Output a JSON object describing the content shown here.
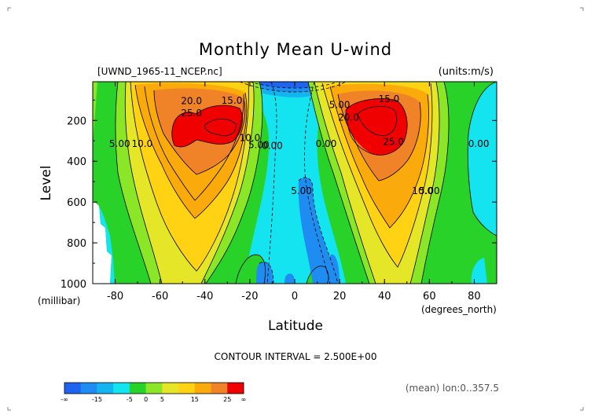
{
  "chart_data": {
    "type": "heatmap",
    "title": "Monthly Mean U-wind",
    "file_label": "[UWND_1965-11_NCEP.nc]",
    "units_label": "(units:m/s)",
    "xlabel": "Latitude",
    "x_units": "(degrees_north)",
    "ylabel": "Level",
    "y_units": "(millibar)",
    "xlim": [
      -90,
      90
    ],
    "ylim": [
      1000,
      10
    ],
    "x_ticks": [
      -80,
      -60,
      -40,
      -20,
      0,
      20,
      40,
      60,
      80
    ],
    "y_ticks": [
      200,
      400,
      600,
      800,
      1000
    ],
    "contour_interval": "CONTOUR INTERVAL = 2.500E+00",
    "averaging_note": "(mean) lon:0..357.5",
    "contour_labels": [
      {
        "text": "20.0",
        "x": -46,
        "y": 120
      },
      {
        "text": "15.0",
        "x": -28,
        "y": 118
      },
      {
        "text": "25.0",
        "x": -46,
        "y": 180
      },
      {
        "text": "10.0",
        "x": -68,
        "y": 330
      },
      {
        "text": "5.00",
        "x": -78,
        "y": 330
      },
      {
        "text": "10.0",
        "x": -20,
        "y": 300
      },
      {
        "text": "5.00",
        "x": -16,
        "y": 335
      },
      {
        "text": "0.00",
        "x": -10,
        "y": 340
      },
      {
        "text": "5.00",
        "x": 20,
        "y": 140
      },
      {
        "text": "0.00",
        "x": 14,
        "y": 330
      },
      {
        "text": "5.00",
        "x": 3,
        "y": 560
      },
      {
        "text": "15.0",
        "x": 42,
        "y": 110
      },
      {
        "text": "20.0",
        "x": 24,
        "y": 200
      },
      {
        "text": "25.0",
        "x": 44,
        "y": 320
      },
      {
        "text": "10.0",
        "x": 57,
        "y": 560
      },
      {
        "text": "5.00",
        "x": 60,
        "y": 560
      },
      {
        "text": "0.00",
        "x": 82,
        "y": 330
      }
    ],
    "colorbar": {
      "levels": [
        "-∞",
        "-15",
        "-5",
        "0",
        "5",
        "15",
        "25",
        "∞"
      ],
      "colors": [
        "#1e64f0",
        "#1e8cf0",
        "#14b4f0",
        "#14e4f0",
        "#28d228",
        "#8ce628",
        "#e6e628",
        "#ffd214",
        "#faaa0a",
        "#f08228",
        "#f00000"
      ]
    }
  }
}
